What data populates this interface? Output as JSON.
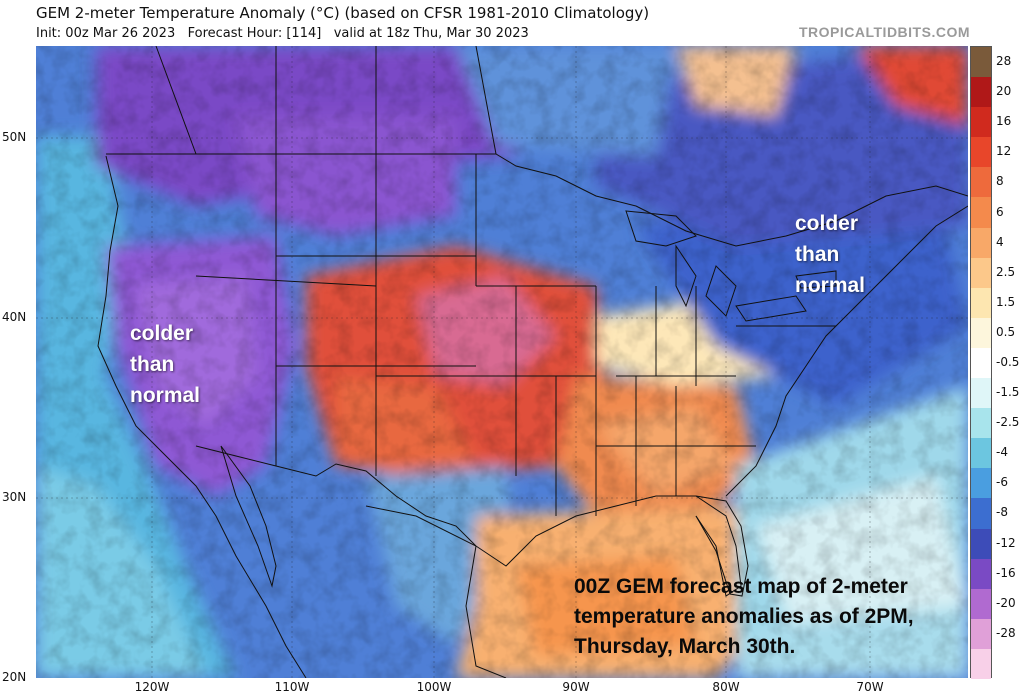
{
  "header": {
    "title": "GEM 2-meter Temperature Anomaly (°C) (based on CFSR 1981-2010 Climatology)",
    "subtitle": "Init: 00z Mar 26 2023   Forecast Hour: [114]   valid at 18z Thu, Mar 30 2023",
    "brand": "TROPICALTIDBITS.COM"
  },
  "axes": {
    "latitude_labels": [
      "50N",
      "40N",
      "30N",
      "20N"
    ],
    "longitude_labels": [
      "120W",
      "110W",
      "100W",
      "90W",
      "80W",
      "70W"
    ]
  },
  "colorbar": {
    "labels": [
      "28",
      "20",
      "16",
      "12",
      "8",
      "6",
      "4",
      "2.5",
      "1.5",
      "0.5",
      "-0.5",
      "-1.5",
      "-2.5",
      "-4",
      "-6",
      "-8",
      "-12",
      "-16",
      "-20",
      "-28"
    ],
    "colors": [
      "#7a5a3a",
      "#b01818",
      "#d02a1e",
      "#e8462a",
      "#ee6a3c",
      "#f48a4c",
      "#f8a868",
      "#fcc88a",
      "#fde6b0",
      "#fdf6dc",
      "#ffffff",
      "#dff6f8",
      "#a8e4ec",
      "#6cc6e0",
      "#4a9ee0",
      "#3c6ed0",
      "#3d4cb8",
      "#7a4ac4",
      "#b06ad0",
      "#e0a0d8",
      "#f8d0e8"
    ]
  },
  "annotations": {
    "west": [
      "colder",
      "than",
      "normal"
    ],
    "east": [
      "colder",
      "than",
      "normal"
    ],
    "caption": [
      "00Z GEM forecast map of 2-meter",
      "temperature anomalies as of 2PM,",
      "Thursday, March 30th."
    ]
  }
}
